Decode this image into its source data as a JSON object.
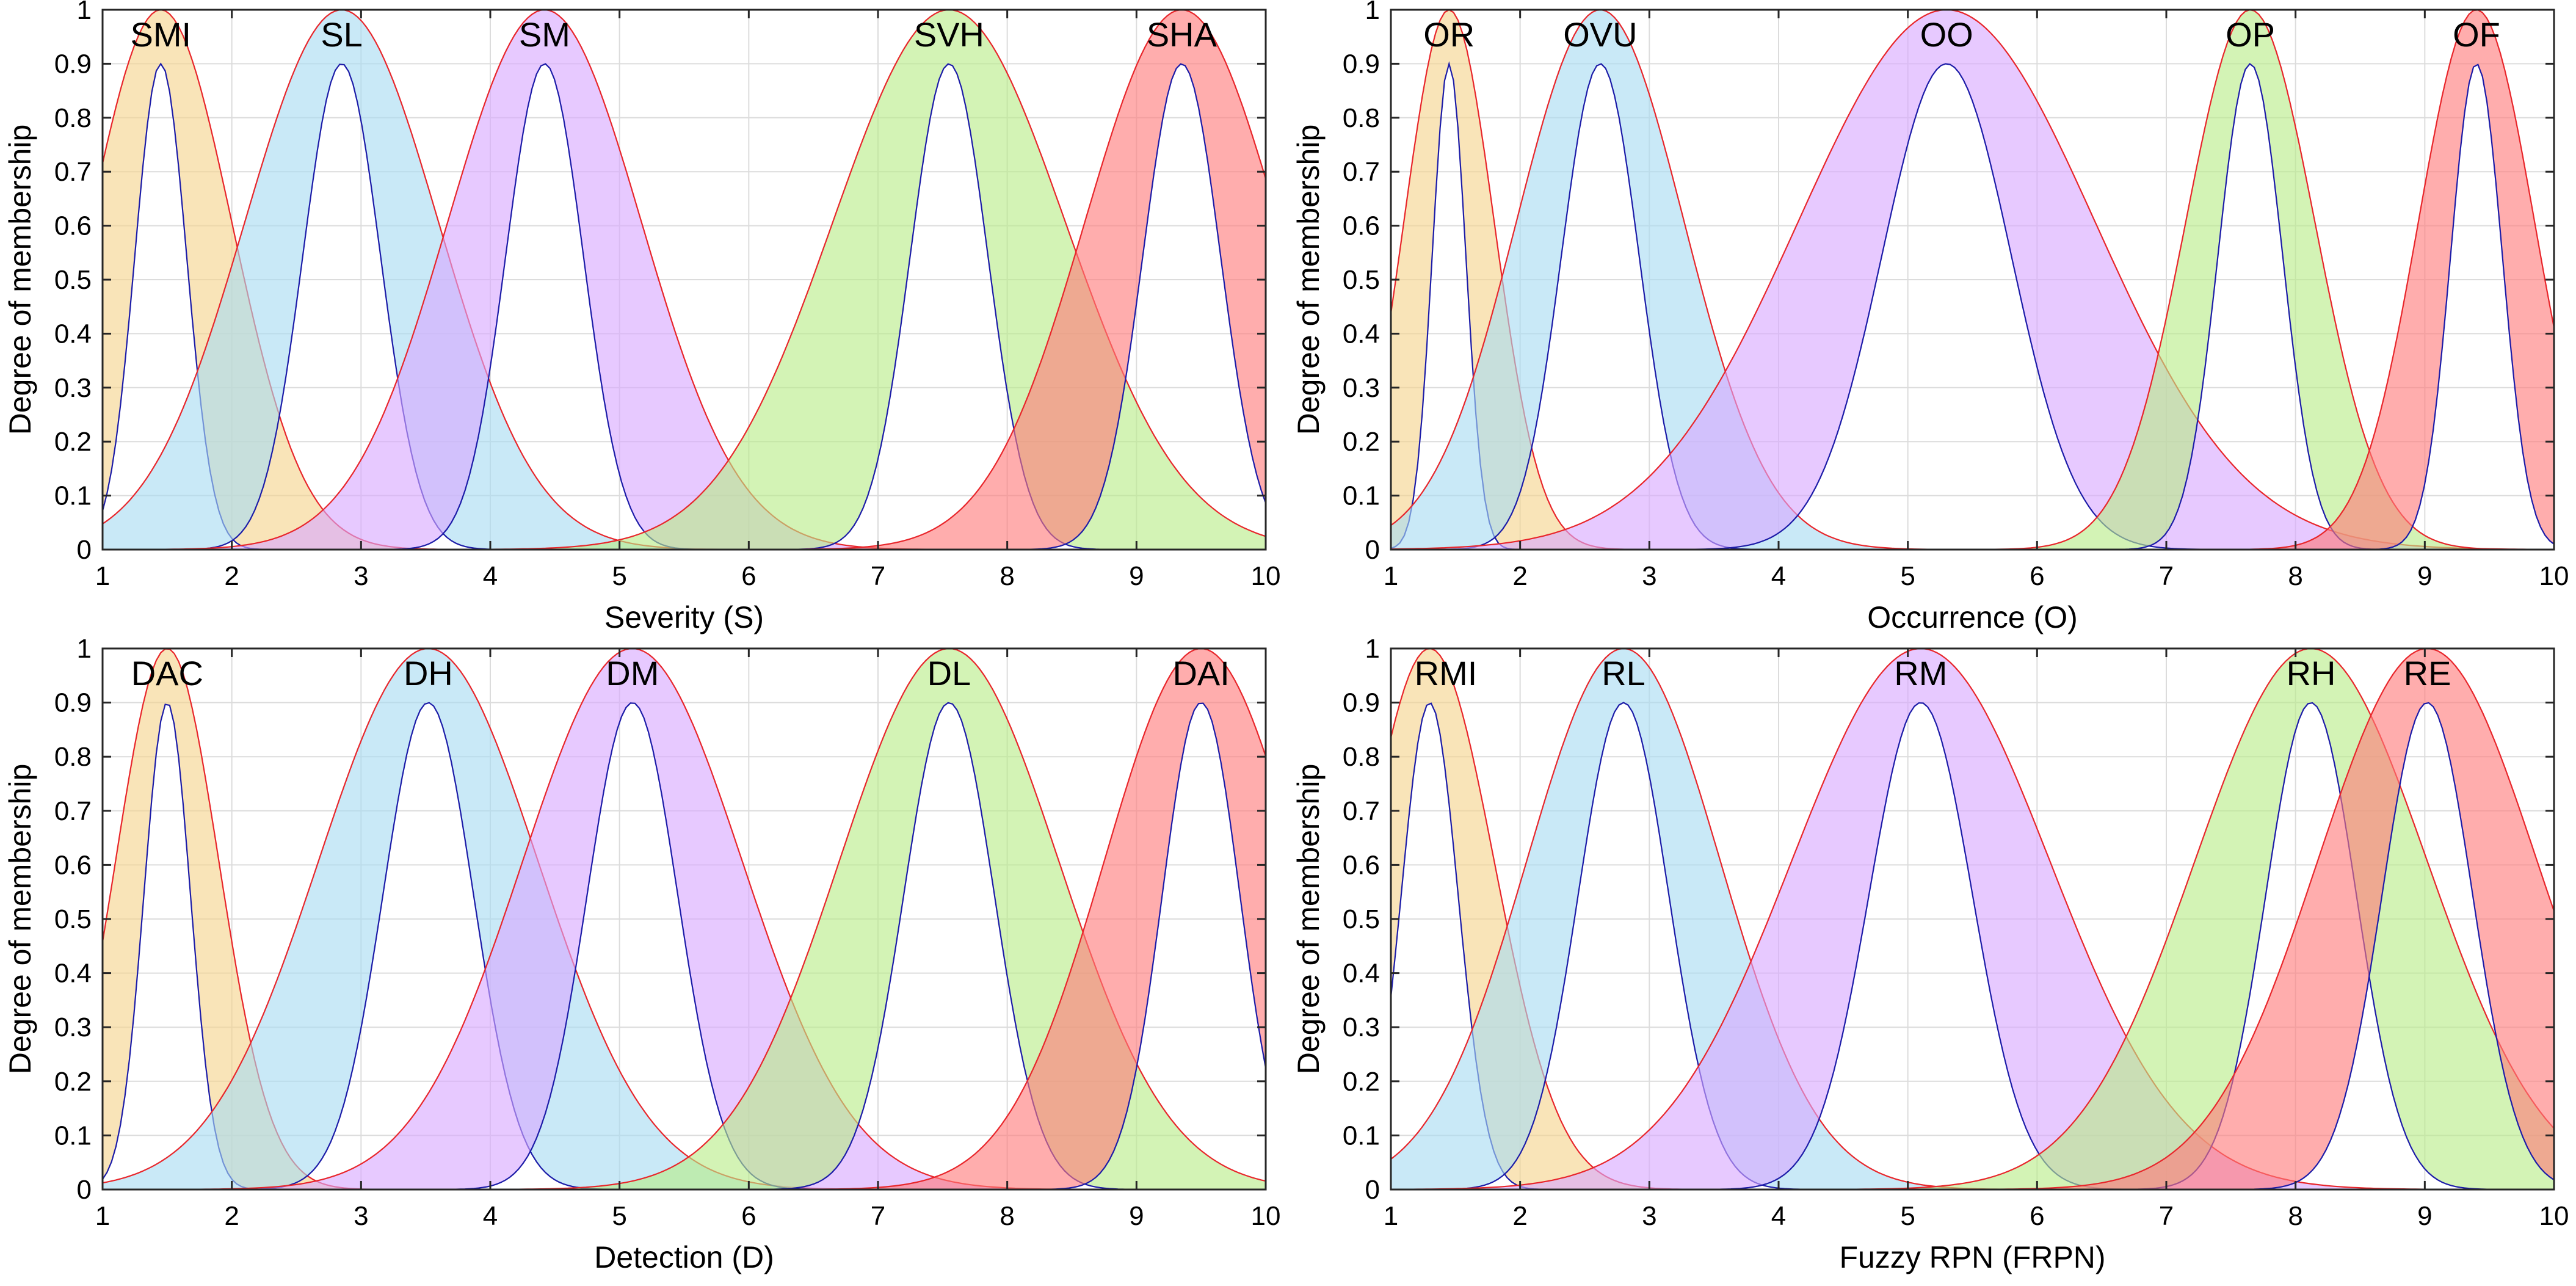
{
  "chart_data": [
    {
      "type": "area",
      "title": "",
      "xlabel": "Severity (S)",
      "ylabel": "Degree of membership",
      "xlim": [
        1,
        10
      ],
      "ylim": [
        0,
        1
      ],
      "xticks": [
        "1",
        "2",
        "3",
        "4",
        "5",
        "6",
        "7",
        "8",
        "9",
        "10"
      ],
      "yticks": [
        "0",
        "0.1",
        "0.2",
        "0.3",
        "0.4",
        "0.5",
        "0.6",
        "0.7",
        "0.8",
        "0.9",
        "1"
      ],
      "grid": true,
      "series": [
        {
          "name": "SMI",
          "center": 1.45,
          "upper_height": 1.0,
          "upper_sigma": 0.55,
          "lower_height": 0.9,
          "lower_sigma": 0.2,
          "color": "#f5d38c"
        },
        {
          "name": "SL",
          "center": 2.85,
          "upper_height": 1.0,
          "upper_sigma": 0.75,
          "lower_height": 0.9,
          "lower_sigma": 0.3,
          "color": "#a8dcf2"
        },
        {
          "name": "SM",
          "center": 4.42,
          "upper_height": 1.0,
          "upper_sigma": 0.75,
          "lower_height": 0.9,
          "lower_sigma": 0.3,
          "color": "#d8a8ff"
        },
        {
          "name": "SVH",
          "center": 7.55,
          "upper_height": 1.0,
          "upper_sigma": 0.9,
          "lower_height": 0.9,
          "lower_sigma": 0.3,
          "color": "#b8eb88"
        },
        {
          "name": "SHA",
          "center": 9.35,
          "upper_height": 1.0,
          "upper_sigma": 0.75,
          "lower_height": 0.9,
          "lower_sigma": 0.3,
          "color": "#ff7b7b"
        }
      ]
    },
    {
      "type": "area",
      "title": "",
      "xlabel": "Occurrence (O)",
      "ylabel": "Degree of membership",
      "xlim": [
        1,
        10
      ],
      "ylim": [
        0,
        1
      ],
      "xticks": [
        "1",
        "2",
        "3",
        "4",
        "5",
        "6",
        "7",
        "8",
        "9",
        "10"
      ],
      "yticks": [
        "0",
        "0.1",
        "0.2",
        "0.3",
        "0.4",
        "0.5",
        "0.6",
        "0.7",
        "0.8",
        "0.9",
        "1"
      ],
      "grid": true,
      "series": [
        {
          "name": "OR",
          "center": 1.45,
          "upper_height": 1.0,
          "upper_sigma": 0.35,
          "lower_height": 0.9,
          "lower_sigma": 0.13,
          "color": "#f5d38c"
        },
        {
          "name": "OVU",
          "center": 2.62,
          "upper_height": 1.0,
          "upper_sigma": 0.65,
          "lower_height": 0.9,
          "lower_sigma": 0.3,
          "color": "#a8dcf2"
        },
        {
          "name": "OO",
          "center": 5.3,
          "upper_height": 1.0,
          "upper_sigma": 1.15,
          "lower_height": 0.9,
          "lower_sigma": 0.5,
          "color": "#d8a8ff"
        },
        {
          "name": "OP",
          "center": 7.65,
          "upper_height": 1.0,
          "upper_sigma": 0.5,
          "lower_height": 0.9,
          "lower_sigma": 0.25,
          "color": "#b8eb88"
        },
        {
          "name": "OF",
          "center": 9.4,
          "upper_height": 1.0,
          "upper_sigma": 0.45,
          "lower_height": 0.9,
          "lower_sigma": 0.2,
          "color": "#ff7b7b"
        }
      ]
    },
    {
      "type": "area",
      "title": "",
      "xlabel": "Detection (D)",
      "ylabel": "Degree of membership",
      "xlim": [
        1,
        10
      ],
      "ylim": [
        0,
        1
      ],
      "xticks": [
        "1",
        "2",
        "3",
        "4",
        "5",
        "6",
        "7",
        "8",
        "9",
        "10"
      ],
      "yticks": [
        "0",
        "0.1",
        "0.2",
        "0.3",
        "0.4",
        "0.5",
        "0.6",
        "0.7",
        "0.8",
        "0.9",
        "1"
      ],
      "grid": true,
      "series": [
        {
          "name": "DAC",
          "center": 1.5,
          "upper_height": 1.0,
          "upper_sigma": 0.4,
          "lower_height": 0.9,
          "lower_sigma": 0.18,
          "color": "#f5d38c"
        },
        {
          "name": "DH",
          "center": 3.52,
          "upper_height": 1.0,
          "upper_sigma": 0.85,
          "lower_height": 0.9,
          "lower_sigma": 0.35,
          "color": "#a8dcf2"
        },
        {
          "name": "DM",
          "center": 5.1,
          "upper_height": 1.0,
          "upper_sigma": 0.85,
          "lower_height": 0.9,
          "lower_sigma": 0.35,
          "color": "#d8a8ff"
        },
        {
          "name": "DL",
          "center": 7.55,
          "upper_height": 1.0,
          "upper_sigma": 0.85,
          "lower_height": 0.9,
          "lower_sigma": 0.35,
          "color": "#b8eb88"
        },
        {
          "name": "DAI",
          "center": 9.5,
          "upper_height": 1.0,
          "upper_sigma": 0.75,
          "lower_height": 0.9,
          "lower_sigma": 0.3,
          "color": "#ff7b7b"
        }
      ]
    },
    {
      "type": "area",
      "title": "",
      "xlabel": "Fuzzy RPN (FRPN)",
      "ylabel": "Degree of membership",
      "xlim": [
        1,
        10
      ],
      "ylim": [
        0,
        1
      ],
      "xticks": [
        "1",
        "2",
        "3",
        "4",
        "5",
        "6",
        "7",
        "8",
        "9",
        "10"
      ],
      "yticks": [
        "0",
        "0.1",
        "0.2",
        "0.3",
        "0.4",
        "0.5",
        "0.6",
        "0.7",
        "0.8",
        "0.9",
        "1"
      ],
      "grid": true,
      "series": [
        {
          "name": "RMI",
          "center": 1.3,
          "upper_height": 1.0,
          "upper_sigma": 0.5,
          "lower_height": 0.9,
          "lower_sigma": 0.22,
          "color": "#f5d38c"
        },
        {
          "name": "RL",
          "center": 2.8,
          "upper_height": 1.0,
          "upper_sigma": 0.75,
          "lower_height": 0.9,
          "lower_sigma": 0.35,
          "color": "#a8dcf2"
        },
        {
          "name": "RM",
          "center": 5.1,
          "upper_height": 1.0,
          "upper_sigma": 1.0,
          "lower_height": 0.9,
          "lower_sigma": 0.4,
          "color": "#d8a8ff"
        },
        {
          "name": "RH",
          "center": 8.12,
          "upper_height": 1.0,
          "upper_sigma": 0.9,
          "lower_height": 0.9,
          "lower_sigma": 0.35,
          "color": "#b8eb88"
        },
        {
          "name": "RE",
          "center": 9.02,
          "upper_height": 1.0,
          "upper_sigma": 0.85,
          "lower_height": 0.9,
          "lower_sigma": 0.35,
          "color": "#ff7b7b"
        }
      ]
    }
  ]
}
